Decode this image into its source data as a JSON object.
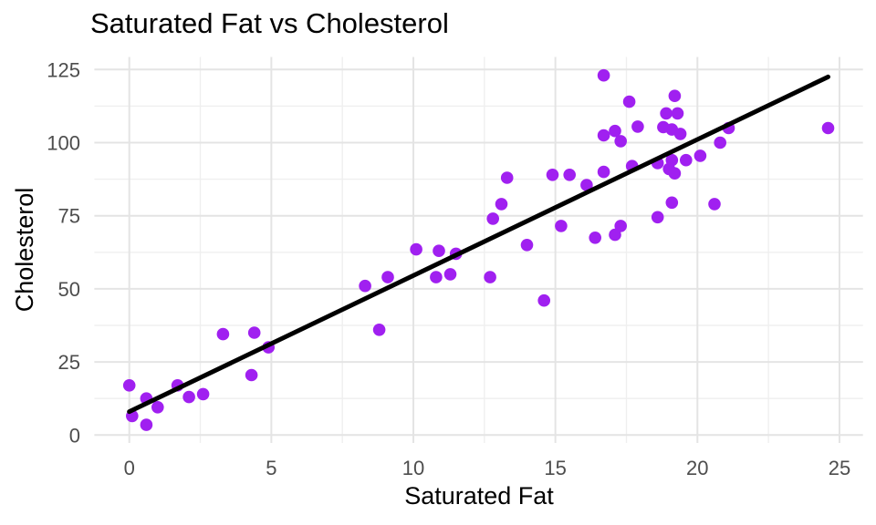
{
  "chart_data": {
    "type": "scatter",
    "title": "Saturated Fat vs Cholesterol",
    "xlabel": "Saturated Fat",
    "ylabel": "Cholesterol",
    "x_ticks": [
      0,
      5,
      10,
      15,
      20,
      25
    ],
    "y_ticks": [
      0,
      25,
      50,
      75,
      100,
      125
    ],
    "x_minor_ticks": [
      2.5,
      7.5,
      12.5,
      17.5,
      22.5
    ],
    "y_minor_ticks": [
      12.5,
      37.5,
      62.5,
      87.5,
      112.5
    ],
    "xlim": [
      -1.25,
      25.85
    ],
    "ylim": [
      -3.5,
      129.5
    ],
    "grid": true,
    "legend": false,
    "background_color": "#ffffff",
    "grid_major_color": "#e4e4e4",
    "grid_minor_color": "#efefef",
    "tick_label_color": "#4d4d4d",
    "point_color": "#A020F0",
    "line_color": "#000000",
    "points": [
      [
        0,
        17
      ],
      [
        0.1,
        6.5
      ],
      [
        0.6,
        12.5
      ],
      [
        0.6,
        3.5
      ],
      [
        1.0,
        9.5
      ],
      [
        1.7,
        17
      ],
      [
        2.1,
        13
      ],
      [
        2.6,
        14
      ],
      [
        3.3,
        34.5
      ],
      [
        4.3,
        20.5
      ],
      [
        4.4,
        35
      ],
      [
        4.9,
        30
      ],
      [
        8.3,
        51
      ],
      [
        8.8,
        36
      ],
      [
        9.1,
        54
      ],
      [
        10.1,
        63.5
      ],
      [
        10.8,
        54
      ],
      [
        10.9,
        63
      ],
      [
        11.3,
        55
      ],
      [
        11.5,
        62
      ],
      [
        12.7,
        54
      ],
      [
        12.8,
        74
      ],
      [
        13.1,
        79
      ],
      [
        13.3,
        88
      ],
      [
        14.0,
        65
      ],
      [
        14.6,
        46
      ],
      [
        14.9,
        89
      ],
      [
        15.2,
        71.5
      ],
      [
        15.5,
        89
      ],
      [
        16.1,
        85.5
      ],
      [
        16.4,
        67.5
      ],
      [
        16.7,
        90
      ],
      [
        16.7,
        102.5
      ],
      [
        16.7,
        123
      ],
      [
        17.1,
        68.5
      ],
      [
        17.1,
        104
      ],
      [
        17.3,
        71.5
      ],
      [
        17.3,
        100.5
      ],
      [
        17.6,
        114
      ],
      [
        17.7,
        92
      ],
      [
        17.9,
        105.5
      ],
      [
        18.6,
        74.5
      ],
      [
        18.6,
        93
      ],
      [
        18.8,
        105.3
      ],
      [
        18.9,
        110
      ],
      [
        19.0,
        91
      ],
      [
        19.1,
        79.5
      ],
      [
        19.1,
        94
      ],
      [
        19.1,
        104.5
      ],
      [
        19.2,
        89.5
      ],
      [
        19.2,
        116
      ],
      [
        19.3,
        110
      ],
      [
        19.4,
        103
      ],
      [
        19.6,
        94
      ],
      [
        20.1,
        95.5
      ],
      [
        20.6,
        79
      ],
      [
        20.8,
        100
      ],
      [
        21.1,
        105
      ],
      [
        24.6,
        105
      ]
    ],
    "trend_line": {
      "x1": 0,
      "y1": 8,
      "x2": 24.6,
      "y2": 122.5
    }
  }
}
